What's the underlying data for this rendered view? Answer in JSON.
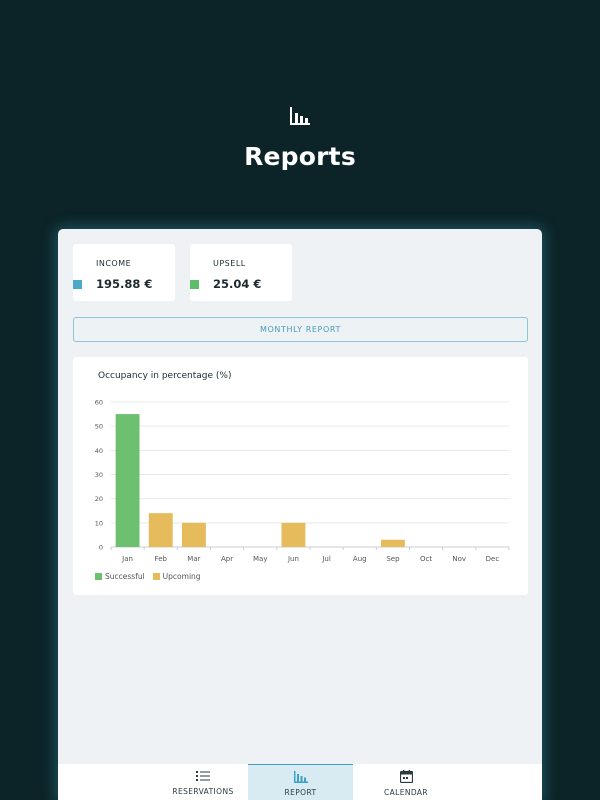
{
  "header": {
    "icon": "bar-chart-icon",
    "title": "Reports"
  },
  "stats": {
    "income": {
      "label": "INCOME",
      "value": "195.88 €",
      "color": "#4aa9c8"
    },
    "upsell": {
      "label": "UPSELL",
      "value": "25.04 €",
      "color": "#5cbd6b"
    }
  },
  "monthly_report_button": "MONTHLY REPORT",
  "chart_title": "Occupancy in percentage (%)",
  "chart_data": {
    "type": "bar",
    "title": "Occupancy in percentage (%)",
    "xlabel": "",
    "ylabel": "",
    "ylim": [
      0,
      60
    ],
    "yticks": [
      0,
      10,
      20,
      30,
      40,
      50,
      60
    ],
    "categories": [
      "Jan",
      "Feb",
      "Mar",
      "Apr",
      "May",
      "Jun",
      "Jul",
      "Aug",
      "Sep",
      "Oct",
      "Nov",
      "Dec"
    ],
    "grid": true,
    "legend_position": "bottom-left",
    "series": [
      {
        "name": "Successful",
        "color": "#6cc070",
        "values": [
          55,
          0,
          0,
          0,
          0,
          0,
          0,
          0,
          0,
          0,
          0,
          0
        ]
      },
      {
        "name": "Upcoming",
        "color": "#e5bb5c",
        "values": [
          0,
          14,
          10,
          0,
          0,
          10,
          0,
          0,
          3,
          0,
          0,
          0
        ]
      }
    ]
  },
  "bottom_nav": {
    "tabs": [
      {
        "label": "RESERVATIONS",
        "icon": "list-icon",
        "active": false
      },
      {
        "label": "REPORT",
        "icon": "bar-chart-icon",
        "active": true
      },
      {
        "label": "CALENDAR",
        "icon": "calendar-icon",
        "active": false
      }
    ]
  }
}
